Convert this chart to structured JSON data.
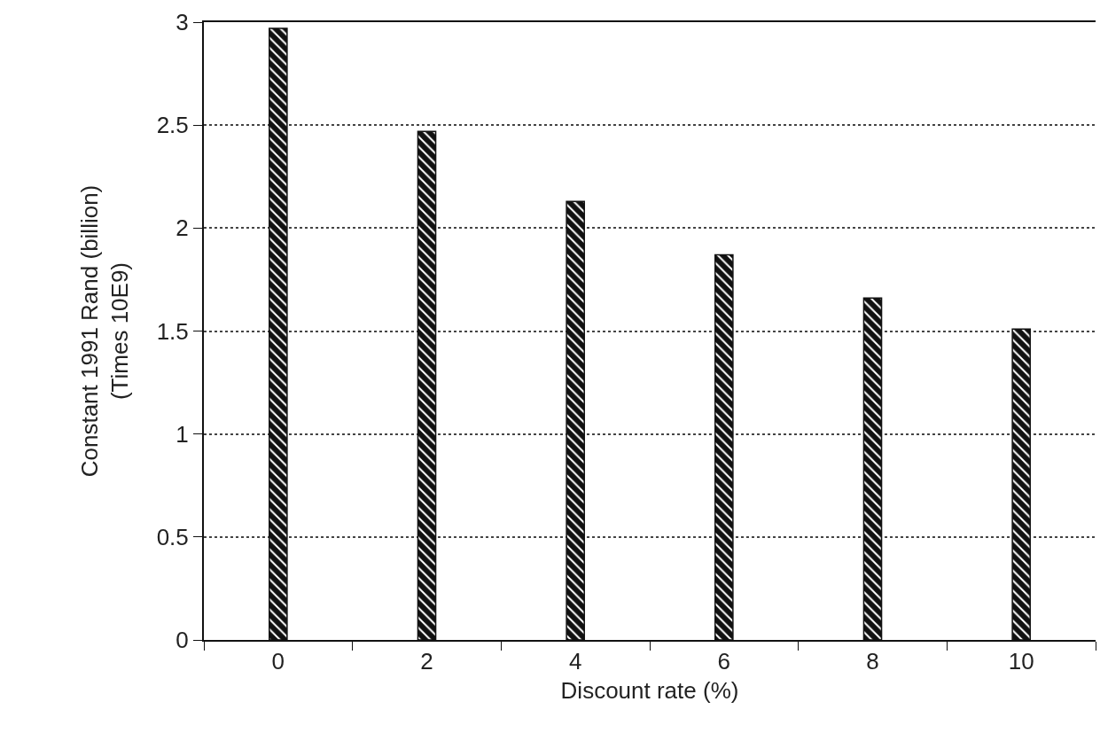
{
  "chart_data": {
    "type": "bar",
    "xlabel": "Discount rate (%)",
    "ylabel": "Constant 1991 Rand (billion)\n(Times 10E9)",
    "categories": [
      "0",
      "2",
      "4",
      "6",
      "8",
      "10"
    ],
    "values": [
      2.97,
      2.47,
      2.13,
      1.87,
      1.66,
      1.51
    ],
    "color": "#111111",
    "ylim": [
      0,
      3
    ],
    "yticks": [
      0,
      0.5,
      1,
      1.5,
      2,
      2.5,
      3
    ],
    "grid": "y"
  }
}
